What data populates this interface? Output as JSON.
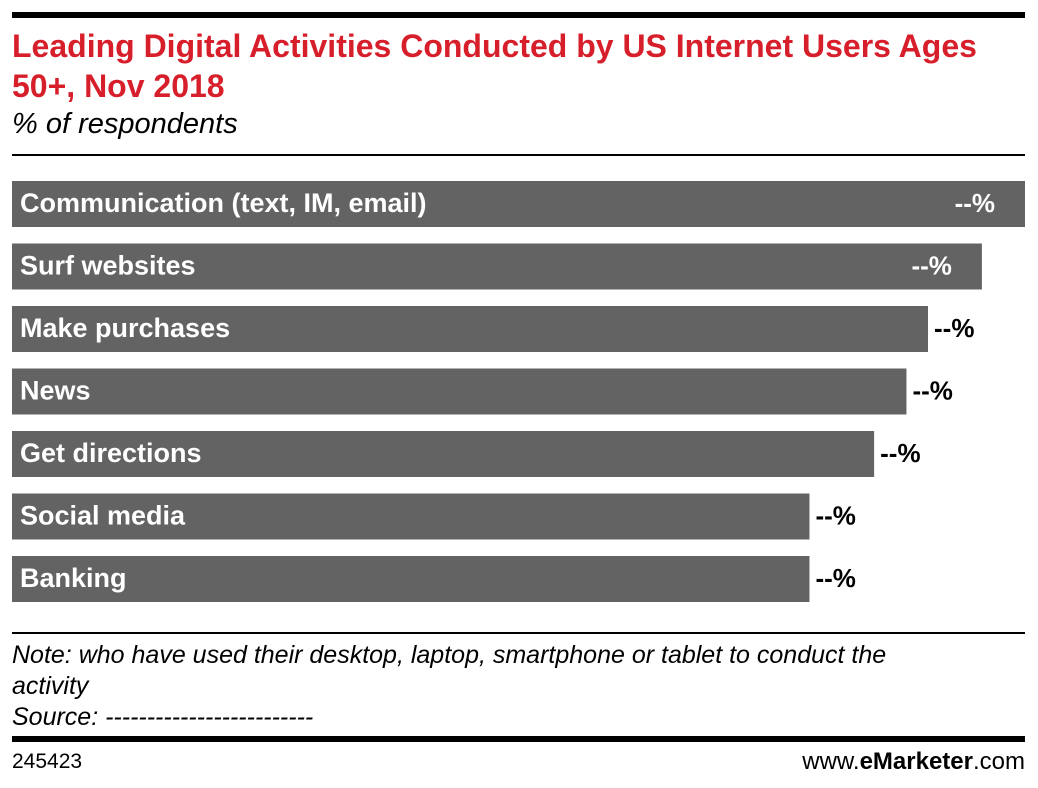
{
  "chart_data": {
    "type": "bar",
    "orientation": "horizontal",
    "title": "Leading Digital Activities Conducted by US Internet Users Ages 50+, Nov 2018",
    "subtitle": "% of respondents",
    "categories": [
      "Communication (text, IM, email)",
      "Surf websites",
      "Make purchases",
      "News",
      "Get directions",
      "Social media",
      "Banking"
    ],
    "values": [
      94,
      90,
      85,
      83,
      80,
      74,
      74
    ],
    "value_labels": [
      "--%",
      "--%",
      "--%",
      "--%",
      "--%",
      "--%",
      "--%"
    ],
    "color": "#636363",
    "note": "Note: who have used their desktop, laptop, smartphone or tablet to conduct the activity",
    "source": "Source: -------------------------",
    "chart_id": "245423",
    "brand": [
      "www.",
      "eMarketer",
      ".com"
    ]
  }
}
